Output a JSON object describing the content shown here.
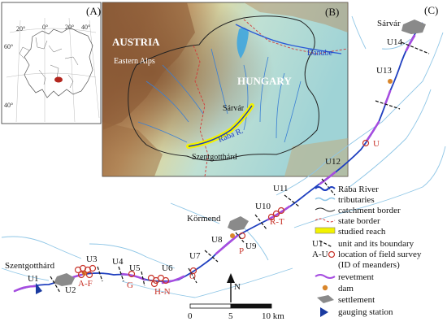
{
  "panels": {
    "a": {
      "letter": "(A)",
      "lon_labels": [
        "20°",
        "0°",
        "20°",
        "40°"
      ],
      "lat_labels": [
        "60°",
        "40°"
      ]
    },
    "b": {
      "letter": "(B)",
      "country_austria": "AUSTRIA",
      "mountains": "Eastern Alps",
      "country_hungary": "HUNGARY",
      "river_danube": "Danube",
      "river_raba": "Rába R.",
      "town_sarvar": "Sárvár",
      "town_szentgotthard": "Szentgotthárd"
    },
    "c": {
      "letter": "(C)",
      "town_sarvar": "Sárvár",
      "town_kormend": "Körmend",
      "town_szentgotthard": "Szentgotthárd"
    }
  },
  "units": [
    "U1",
    "U2",
    "U3",
    "U4",
    "U5",
    "U6",
    "U7",
    "U8",
    "U9",
    "U10",
    "U11",
    "U12",
    "U13",
    "U14"
  ],
  "survey_ids": [
    "A-F",
    "G",
    "H-N",
    "O",
    "P",
    "R-T",
    "U"
  ],
  "legend": {
    "raba": "Rába River",
    "tributaries": "tributaries",
    "catchment": "catchment border",
    "state": "state border",
    "studied": "studied reach",
    "unit_symbol": "U1",
    "unit": "unit and its boundary",
    "survey_symbol": "A-U",
    "survey_line1": "location of field survey",
    "survey_line2": "(ID of meanders)",
    "revetment": "revetment",
    "dam": "dam",
    "settlement": "settlement",
    "gauging": "gauging station"
  },
  "scale": {
    "start": "0",
    "mid": "5",
    "end": "10 km",
    "north": "N"
  },
  "colors": {
    "river": "#1f3fbf",
    "tributary": "#8fc6e6",
    "revetment": "#a64de0",
    "dam": "#d9862b",
    "survey": "#c8342a",
    "settlement": "#8a8a8a",
    "gauge": "#1a3aa0",
    "studied": "#f0f000"
  }
}
